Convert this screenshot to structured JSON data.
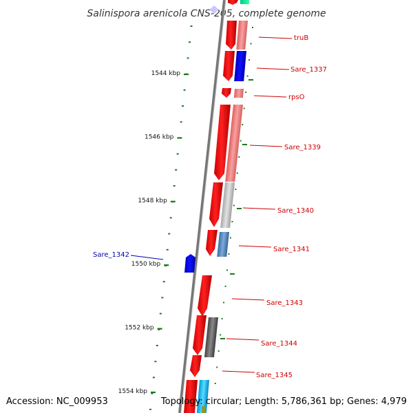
{
  "title": "Salinispora arenicola CNS-205, complete genome",
  "footer": {
    "accession": "Accession: NC_009953",
    "summary": "Topology: circular; Length: 5,786,361 bp; Genes: 4,979"
  },
  "scale_labels": [
    {
      "text": "1544 kbp",
      "kbp": 1544
    },
    {
      "text": "1546 kbp",
      "kbp": 1546
    },
    {
      "text": "1548 kbp",
      "kbp": 1548
    },
    {
      "text": "1550 kbp",
      "kbp": 1550
    },
    {
      "text": "1552 kbp",
      "kbp": 1552
    },
    {
      "text": "1554 kbp",
      "kbp": 1554
    }
  ],
  "gene_labels": [
    {
      "text": "truB",
      "color": "#cc0000"
    },
    {
      "text": "Sare_1337",
      "color": "#cc0000"
    },
    {
      "text": "rpsO",
      "color": "#cc0000"
    },
    {
      "text": "Sare_1339",
      "color": "#cc0000"
    },
    {
      "text": "Sare_1340",
      "color": "#cc0000"
    },
    {
      "text": "Sare_1341",
      "color": "#cc0000"
    },
    {
      "text": "Sare_1342",
      "color": "#0000aa"
    },
    {
      "text": "Sare_1343",
      "color": "#cc0000"
    },
    {
      "text": "Sare_1344",
      "color": "#cc0000"
    },
    {
      "text": "Sare_1345",
      "color": "#cc0000"
    }
  ],
  "colors": {
    "gene_forward": "#ff0000",
    "gene_reverse": "#0000ff",
    "backbone": "#888888",
    "tick": "#1a7a1a"
  }
}
